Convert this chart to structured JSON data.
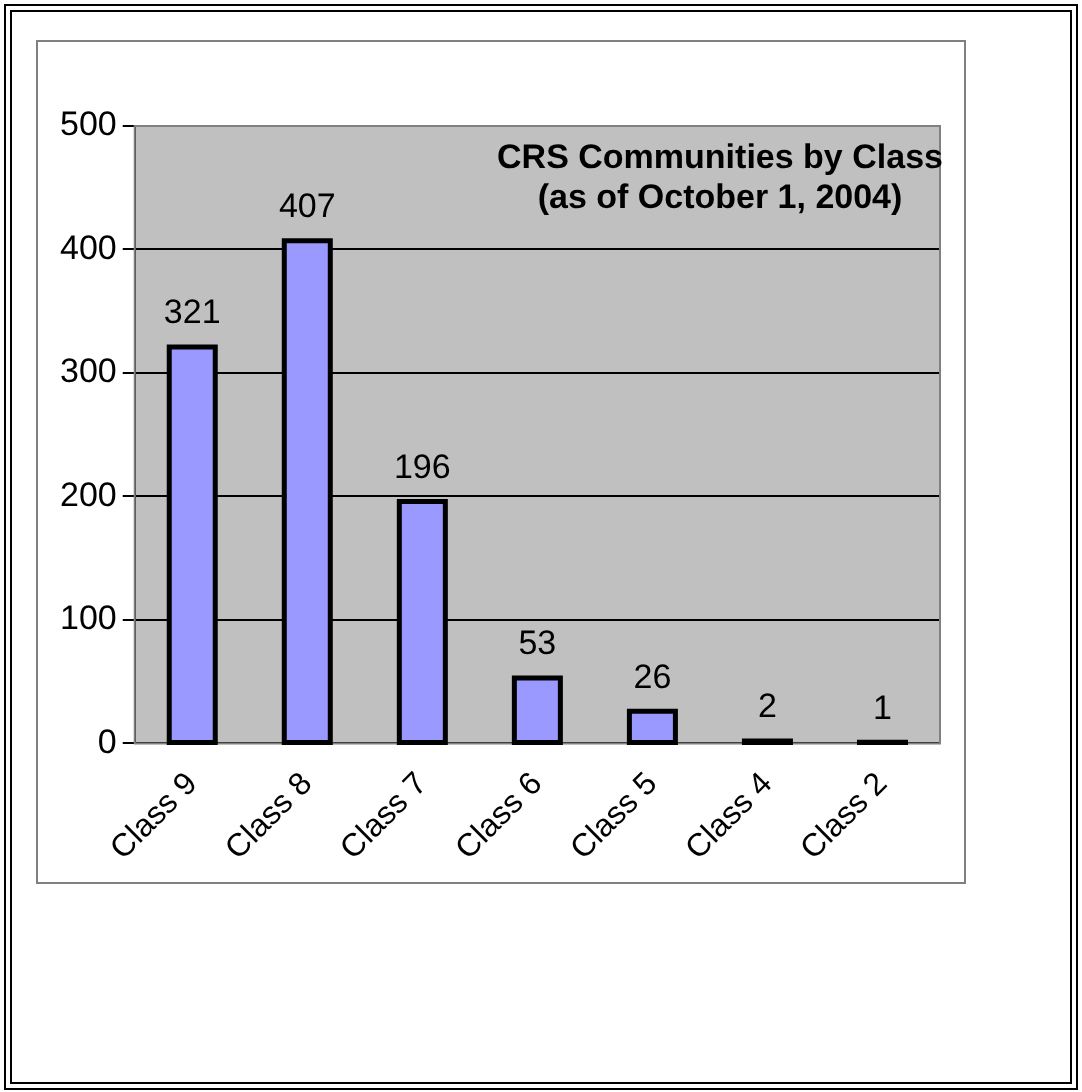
{
  "chart_data": {
    "type": "bar",
    "title": "CRS Communities by Class\n(as of October 1, 2004)",
    "categories": [
      "Class 9",
      "Class 8",
      "Class 7",
      "Class 6",
      "Class 5",
      "Class 4",
      "Class 2"
    ],
    "values": [
      321,
      407,
      196,
      53,
      26,
      2,
      1
    ],
    "data_labels": true,
    "color": "#9999ff",
    "ylim": [
      0,
      500
    ],
    "yticks": [
      0,
      100,
      200,
      300,
      400,
      500
    ],
    "grid": "y",
    "legend": false
  }
}
